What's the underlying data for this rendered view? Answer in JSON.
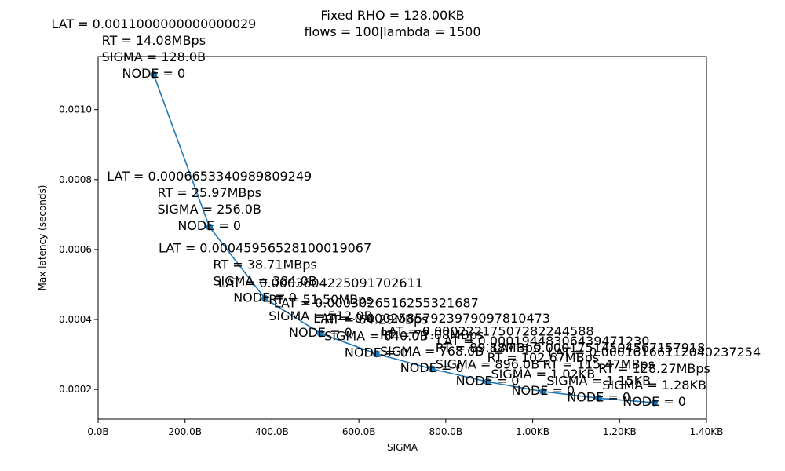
{
  "chart_data": {
    "type": "line",
    "title": [
      "Fixed RHO = 128.00KB",
      "flows = 100|lambda = 1500"
    ],
    "xlabel": "SIGMA",
    "ylabel": "Max latency (seconds)",
    "xlim": [
      0,
      1400
    ],
    "ylim": [
      0.000115,
      0.001152
    ],
    "x_ticks": [
      {
        "v": 0,
        "label": "0.0B"
      },
      {
        "v": 200,
        "label": "200.0B"
      },
      {
        "v": 400,
        "label": "400.0B"
      },
      {
        "v": 600,
        "label": "600.0B"
      },
      {
        "v": 800,
        "label": "800.0B"
      },
      {
        "v": 1000,
        "label": "1.00KB"
      },
      {
        "v": 1200,
        "label": "1.20KB"
      },
      {
        "v": 1400,
        "label": "1.40KB"
      }
    ],
    "y_ticks": [
      {
        "v": 0.0002,
        "label": "0.0002"
      },
      {
        "v": 0.0004,
        "label": "0.0004"
      },
      {
        "v": 0.0006,
        "label": "0.0006"
      },
      {
        "v": 0.0008,
        "label": "0.0008"
      },
      {
        "v": 0.001,
        "label": "0.0010"
      }
    ],
    "line_color": "#1f77b4",
    "grid": false,
    "series": [
      {
        "points": [
          {
            "x": 128,
            "y": 0.0011,
            "labels": [
              "LAT = 0.0011000000000000029",
              "RT = 14.08MBps",
              "SIGMA = 128.0B",
              "NODE = 0"
            ]
          },
          {
            "x": 256,
            "y": 0.000665,
            "labels": [
              "LAT = 0.0006653340989809249",
              "RT = 25.97MBps",
              "SIGMA = 256.0B",
              "NODE = 0"
            ]
          },
          {
            "x": 384,
            "y": 0.00046,
            "labels": [
              "LAT = 0.00045956528100019067",
              "RT = 38.71MBps",
              "SIGMA = 384.0B",
              "NODE = 0"
            ]
          },
          {
            "x": 512,
            "y": 0.00036,
            "labels": [
              "LAT = 0.0003604225091702611",
              "RT = 51.50MBps",
              "SIGMA = 512.0B",
              "NODE = 0"
            ]
          },
          {
            "x": 640,
            "y": 0.000302,
            "labels": [
              "LAT = 0.0003026516255321687",
              "RT = 64.29MBps",
              "SIGMA = 640.0B",
              "NODE = 0"
            ]
          },
          {
            "x": 768,
            "y": 0.000259,
            "labels": [
              "LAT = 0.00025857923979097810473",
              "RT = 77.08MBps",
              "SIGMA = 768.0B",
              "NODE = 0"
            ]
          },
          {
            "x": 896,
            "y": 0.000222,
            "labels": [
              "LAT = 0.00022217507282244588",
              "RT = 89.88MBps",
              "SIGMA = 896.0B",
              "NODE = 0"
            ]
          },
          {
            "x": 1024,
            "y": 0.000194,
            "labels": [
              "LAT = 0.00019448306439471230",
              "RT = 102.67MBps",
              "SIGMA = 1.02KB",
              "NODE = 0"
            ]
          },
          {
            "x": 1152,
            "y": 0.000175,
            "labels": [
              "LAT = 0.00017514504567157918",
              "RT = 115.47MBps",
              "SIGMA = 1.15KB",
              "NODE = 0"
            ]
          },
          {
            "x": 1280,
            "y": 0.000162,
            "labels": [
              "LAT = 0.00016166112040237254",
              "RT = 128.27MBps",
              "SIGMA = 1.28KB",
              "NODE = 0"
            ]
          }
        ]
      }
    ]
  }
}
